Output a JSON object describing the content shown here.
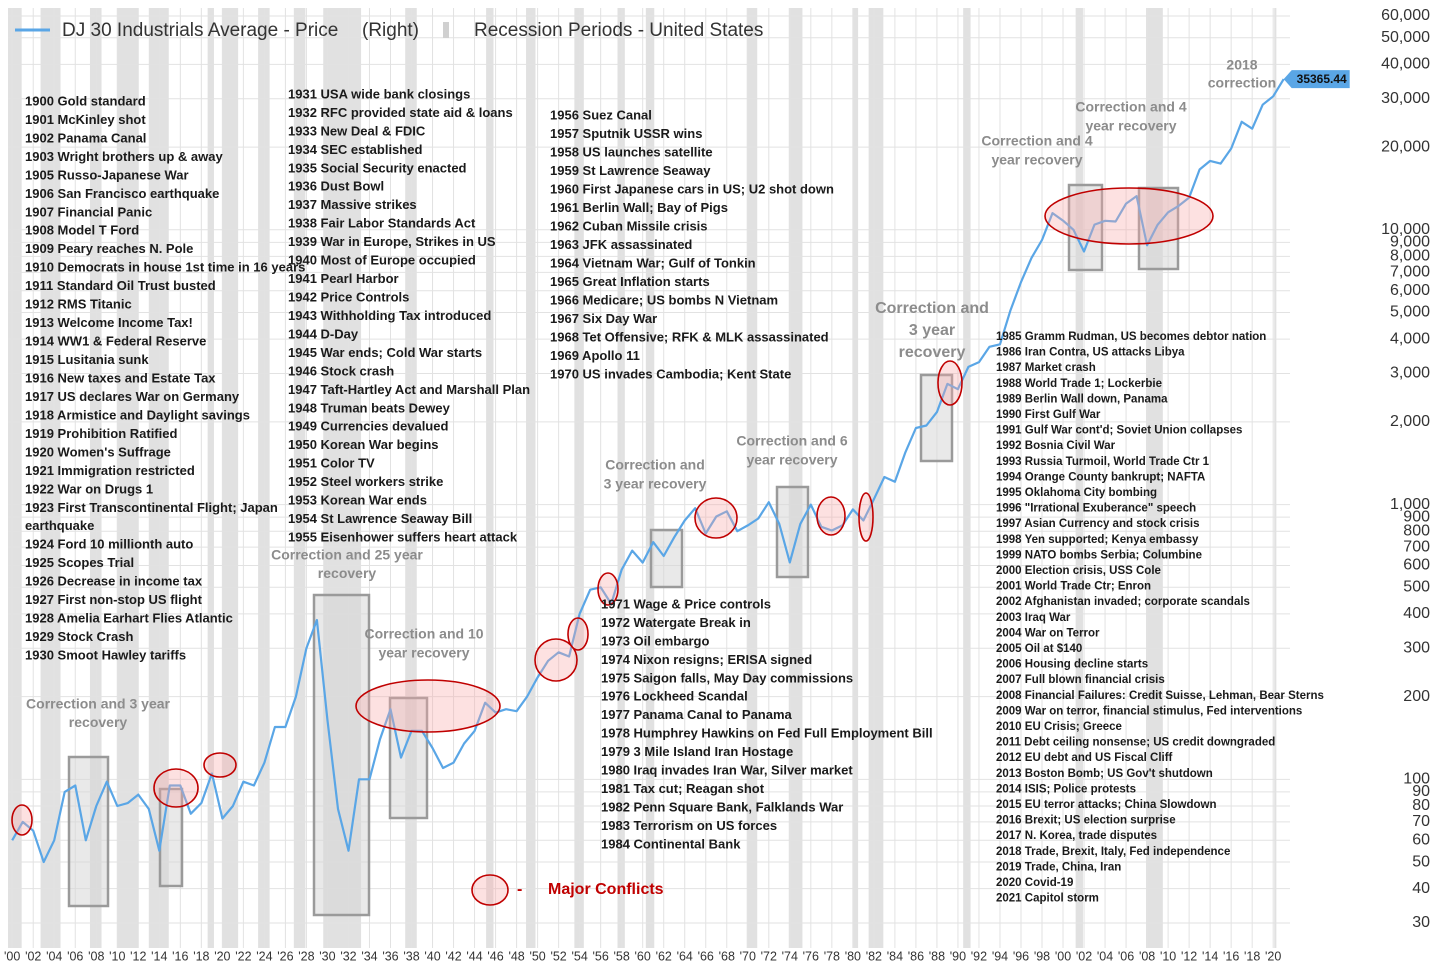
{
  "chart_data": {
    "type": "line",
    "axis_note": "(Right)",
    "recession_name": "Recession Periods - United States",
    "series": [
      {
        "name": "DJ 30 Industrials Average - Price",
        "color": "#5aa6e6",
        "x": [
          1900,
          1901,
          1902,
          1903,
          1904,
          1905,
          1906,
          1907,
          1908,
          1909,
          1910,
          1911,
          1912,
          1913,
          1914,
          1915,
          1916,
          1917,
          1918,
          1919,
          1920,
          1921,
          1922,
          1923,
          1924,
          1925,
          1926,
          1927,
          1928,
          1929,
          1930,
          1931,
          1932,
          1933,
          1934,
          1935,
          1936,
          1937,
          1938,
          1939,
          1940,
          1941,
          1942,
          1943,
          1944,
          1945,
          1946,
          1947,
          1948,
          1949,
          1950,
          1951,
          1952,
          1953,
          1954,
          1955,
          1956,
          1957,
          1958,
          1959,
          1960,
          1961,
          1962,
          1963,
          1964,
          1965,
          1966,
          1967,
          1968,
          1969,
          1970,
          1971,
          1972,
          1973,
          1974,
          1975,
          1976,
          1977,
          1978,
          1979,
          1980,
          1981,
          1982,
          1983,
          1984,
          1985,
          1986,
          1987,
          1988,
          1989,
          1990,
          1991,
          1992,
          1993,
          1994,
          1995,
          1996,
          1997,
          1998,
          1999,
          2000,
          2001,
          2002,
          2003,
          2004,
          2005,
          2006,
          2007,
          2008,
          2009,
          2010,
          2011,
          2012,
          2013,
          2014,
          2015,
          2016,
          2017,
          2018,
          2019,
          2020,
          2021
        ],
        "values": [
          60,
          70,
          65,
          50,
          60,
          90,
          95,
          60,
          80,
          98,
          80,
          82,
          88,
          78,
          55,
          95,
          95,
          75,
          82,
          105,
          72,
          80,
          98,
          95,
          115,
          155,
          155,
          200,
          300,
          380,
          165,
          78,
          55,
          100,
          100,
          140,
          180,
          120,
          150,
          150,
          130,
          110,
          115,
          135,
          150,
          190,
          175,
          180,
          177,
          200,
          235,
          270,
          290,
          280,
          400,
          490,
          500,
          435,
          580,
          680,
          615,
          730,
          650,
          760,
          875,
          970,
          785,
          905,
          945,
          800,
          840,
          890,
          1020,
          850,
          616,
          850,
          1000,
          830,
          805,
          840,
          960,
          875,
          1046,
          1260,
          1210,
          1550,
          1900,
          1940,
          2170,
          2750,
          2630,
          3170,
          3300,
          3750,
          3830,
          5100,
          6450,
          7900,
          9180,
          11500,
          10800,
          10000,
          8340,
          10450,
          10780,
          10720,
          12460,
          13260,
          8780,
          10430,
          11580,
          12220,
          13100,
          16580,
          17820,
          17420,
          19760,
          24720,
          23330,
          28540,
          30600,
          35365.44
        ]
      }
    ],
    "recessions": [
      [
        1899.5,
        1900.9
      ],
      [
        1902.7,
        1904.6
      ],
      [
        1907.4,
        1908.5
      ],
      [
        1910.0,
        1912.0
      ],
      [
        1913.0,
        1914.9
      ],
      [
        1918.6,
        1919.2
      ],
      [
        1920.0,
        1921.5
      ],
      [
        1923.4,
        1924.5
      ],
      [
        1926.8,
        1927.9
      ],
      [
        1929.6,
        1933.2
      ],
      [
        1937.4,
        1938.5
      ],
      [
        1945.1,
        1945.8
      ],
      [
        1948.9,
        1949.8
      ],
      [
        1953.5,
        1954.4
      ],
      [
        1957.6,
        1958.3
      ],
      [
        1960.3,
        1961.1
      ],
      [
        1969.9,
        1970.9
      ],
      [
        1973.9,
        1975.2
      ],
      [
        1980.0,
        1980.5
      ],
      [
        1981.5,
        1982.9
      ],
      [
        1990.5,
        1991.2
      ],
      [
        2001.2,
        2001.9
      ],
      [
        2007.9,
        2009.5
      ],
      [
        2020.1,
        2020.3
      ]
    ],
    "xlim": [
      1899.6,
      2021.6
    ],
    "xticks": [
      {
        "value": 1900,
        "label": "'00"
      },
      {
        "value": 1902,
        "label": "'02"
      },
      {
        "value": 1904,
        "label": "'04"
      },
      {
        "value": 1906,
        "label": "'06"
      },
      {
        "value": 1908,
        "label": "'08"
      },
      {
        "value": 1910,
        "label": "'10"
      },
      {
        "value": 1912,
        "label": "'12"
      },
      {
        "value": 1914,
        "label": "'14"
      },
      {
        "value": 1916,
        "label": "'16"
      },
      {
        "value": 1918,
        "label": "'18"
      },
      {
        "value": 1920,
        "label": "'20"
      },
      {
        "value": 1922,
        "label": "'22"
      },
      {
        "value": 1924,
        "label": "'24"
      },
      {
        "value": 1926,
        "label": "'26"
      },
      {
        "value": 1928,
        "label": "'28"
      },
      {
        "value": 1930,
        "label": "'30"
      },
      {
        "value": 1932,
        "label": "'32"
      },
      {
        "value": 1934,
        "label": "'34"
      },
      {
        "value": 1936,
        "label": "'36"
      },
      {
        "value": 1938,
        "label": "'38"
      },
      {
        "value": 1940,
        "label": "'40"
      },
      {
        "value": 1942,
        "label": "'42"
      },
      {
        "value": 1944,
        "label": "'44"
      },
      {
        "value": 1946,
        "label": "'46"
      },
      {
        "value": 1948,
        "label": "'48"
      },
      {
        "value": 1950,
        "label": "'50"
      },
      {
        "value": 1952,
        "label": "'52"
      },
      {
        "value": 1954,
        "label": "'54"
      },
      {
        "value": 1956,
        "label": "'56"
      },
      {
        "value": 1958,
        "label": "'58"
      },
      {
        "value": 1960,
        "label": "'60"
      },
      {
        "value": 1962,
        "label": "'62"
      },
      {
        "value": 1964,
        "label": "'64"
      },
      {
        "value": 1966,
        "label": "'66"
      },
      {
        "value": 1968,
        "label": "'68"
      },
      {
        "value": 1970,
        "label": "'70"
      },
      {
        "value": 1972,
        "label": "'72"
      },
      {
        "value": 1974,
        "label": "'74"
      },
      {
        "value": 1976,
        "label": "'76"
      },
      {
        "value": 1978,
        "label": "'78"
      },
      {
        "value": 1980,
        "label": "'80"
      },
      {
        "value": 1982,
        "label": "'82"
      },
      {
        "value": 1984,
        "label": "'84"
      },
      {
        "value": 1986,
        "label": "'86"
      },
      {
        "value": 1988,
        "label": "'88"
      },
      {
        "value": 1990,
        "label": "'90"
      },
      {
        "value": 1992,
        "label": "'92"
      },
      {
        "value": 1994,
        "label": "'94"
      },
      {
        "value": 1996,
        "label": "'96"
      },
      {
        "value": 1998,
        "label": "'98"
      },
      {
        "value": 2000,
        "label": "'00"
      },
      {
        "value": 2002,
        "label": "'02"
      },
      {
        "value": 2004,
        "label": "'04"
      },
      {
        "value": 2006,
        "label": "'06"
      },
      {
        "value": 2008,
        "label": "'08"
      },
      {
        "value": 2010,
        "label": "'10"
      },
      {
        "value": 2012,
        "label": "'12"
      },
      {
        "value": 2014,
        "label": "'14"
      },
      {
        "value": 2016,
        "label": "'16"
      },
      {
        "value": 2018,
        "label": "'18"
      },
      {
        "value": 2020,
        "label": "'20"
      }
    ],
    "ylim": [
      30,
      60000
    ],
    "log_y": true,
    "grid": true,
    "yticks": [
      30,
      40,
      50,
      60,
      70,
      80,
      90,
      100,
      200,
      300,
      400,
      500,
      600,
      700,
      800,
      900,
      {
        "value": 1000,
        "label": "1,000"
      },
      {
        "value": 2000,
        "label": "2,000"
      },
      {
        "value": 3000,
        "label": "3,000"
      },
      {
        "value": 4000,
        "label": "4,000"
      },
      {
        "value": 5000,
        "label": "5,000"
      },
      {
        "value": 6000,
        "label": "6,000"
      },
      {
        "value": 7000,
        "label": "7,000"
      },
      {
        "value": 8000,
        "label": "8,000"
      },
      {
        "value": 9000,
        "label": "9,000"
      },
      {
        "value": 10000,
        "label": "10,000"
      },
      {
        "value": 20000,
        "label": "20,000"
      },
      {
        "value": 30000,
        "label": "30,000"
      },
      {
        "value": 40000,
        "label": "40,000"
      },
      {
        "value": 50000,
        "label": "50,000"
      },
      {
        "value": 60000,
        "label": "60,000"
      }
    ],
    "conflict_legend": {
      "dash": "-",
      "label": "Major Conflicts"
    },
    "annotations": [
      [
        "Correction and 3 year",
        "recovery"
      ],
      [
        "Correction and 25 year",
        "recovery"
      ],
      [
        "Correction and 10",
        "year recovery"
      ],
      [
        "Correction and",
        "3 year recovery"
      ],
      [
        "Correction and 6",
        "year recovery"
      ],
      [
        "Correction and",
        "3 year",
        "recovery"
      ],
      [
        "Correction and 4",
        "year recovery"
      ],
      [
        "Correction and 4",
        "year recovery"
      ],
      [
        "2018",
        "correction"
      ]
    ],
    "events": [
      [
        "1900 Gold standard",
        "1901 McKinley shot",
        "1902 Panama Canal",
        "1903 Wright brothers up & away",
        "1905 Russo-Japanese War",
        "1906 San Francisco earthquake",
        "1907 Financial Panic",
        "1908 Model T Ford",
        "1909 Peary reaches N. Pole",
        "1910 Democrats in house 1st time in 16 years",
        "1911 Standard Oil Trust busted",
        "1912 RMS Titanic",
        "1913 Welcome Income Tax!",
        "1914 WW1 & Federal Reserve",
        "1915 Lusitania sunk",
        "1916 New taxes and Estate Tax",
        "1917 US declares War on Germany",
        "1918 Armistice and Daylight savings",
        "1919 Prohibition Ratified",
        "1920 Women's Suffrage",
        "1921 Immigration restricted",
        "1922 War on Drugs 1",
        "1923 First Transcontinental Flight; Japan",
        "earthquake",
        "1924 Ford 10 millionth auto",
        "1925 Scopes Trial",
        "1926 Decrease in income tax",
        "1927 First non-stop US flight",
        "1928 Amelia Earhart Flies Atlantic",
        "1929 Stock Crash",
        "1930 Smoot Hawley tariffs"
      ],
      [
        "1931 USA wide bank closings",
        "1932 RFC provided state aid & loans",
        "1933 New Deal & FDIC",
        "1934 SEC established",
        "1935 Social Security enacted",
        "1936 Dust Bowl",
        "1937 Massive strikes",
        "1938 Fair Labor Standards Act",
        "1939 War in Europe, Strikes in US",
        "1940 Most of Europe occupied",
        "1941 Pearl Harbor",
        "1942 Price Controls",
        "1943 Withholding Tax introduced",
        "1944 D-Day",
        "1945 War ends; Cold War starts",
        "1946 Stock crash",
        "1947 Taft-Hartley Act and Marshall Plan",
        "1948 Truman beats Dewey",
        "1949 Currencies devalued",
        "1950 Korean War begins",
        "1951 Color TV",
        "1952 Steel workers strike",
        "1953 Korean War ends",
        "1954 St Lawrence Seaway Bill",
        "1955 Eisenhower suffers heart attack"
      ],
      [
        "1956 Suez Canal",
        "1957 Sputnik USSR wins",
        "1958 US launches satellite",
        "1959 St Lawrence Seaway",
        "1960 First Japanese cars in US; U2 shot down",
        "1961 Berlin Wall; Bay of Pigs",
        "1962 Cuban Missile crisis",
        "1963 JFK assassinated",
        "1964 Vietnam War; Gulf of Tonkin",
        "1965 Great Inflation starts",
        "1966 Medicare; US bombs N Vietnam",
        "1967 Six Day War",
        "1968 Tet Offensive; RFK & MLK assassinated",
        "1969 Apollo 11",
        "1970 US invades Cambodia; Kent State"
      ],
      [
        "1971 Wage & Price controls",
        "1972 Watergate Break in",
        "1973 Oil embargo",
        "1974 Nixon resigns; ERISA signed",
        "1975 Saigon falls, May Day commissions",
        "1976 Lockheed Scandal",
        "1977 Panama Canal to Panama",
        "1978 Humphrey Hawkins on Fed Full Employment Bill",
        "1979 3 Mile Island Iran Hostage",
        "1980 Iraq invades Iran War, Silver market",
        "1981 Tax cut; Reagan shot",
        "1982 Penn Square Bank, Falklands War",
        "1983 Terrorism on US forces",
        "1984 Continental Bank"
      ],
      [
        "1985 Gramm Rudman, US becomes debtor nation",
        "1986 Iran Contra, US attacks Libya",
        "1987 Market crash",
        "1988 World Trade 1; Lockerbie",
        "1989 Berlin Wall down, Panama",
        "1990 First Gulf War",
        "1991 Gulf War cont'd; Soviet Union collapses",
        "1992 Bosnia Civil War",
        "1993 Russia Turmoil, World Trade Ctr 1",
        "1994 Orange County bankrupt; NAFTA",
        "1995 Oklahoma City bombing",
        "1996 \"Irrational Exuberance\" speech",
        "1997 Asian Currency and stock crisis",
        "1998 Yen supported; Kenya embassy",
        "1999 NATO bombs Serbia; Columbine",
        "2000 Election crisis, USS Cole",
        "2001 World Trade Ctr; Enron",
        "2002 Afghanistan invaded; corporate scandals",
        "2003 Iraq War",
        "2004 War on Terror",
        "2005 Oil at $140",
        "2006 Housing decline starts",
        "2007 Full blown financial crisis",
        "2008 Financial Failures: Credit Suisse, Lehman, Bear Sterns",
        "2009 War on terror, financial stimulus, Fed interventions",
        "2010 EU Crisis; Greece",
        "2011 Debt ceiling nonsense; US credit downgraded",
        "2012 EU debt and US Fiscal Cliff",
        "2013 Boston Bomb; US Gov't shutdown",
        "2014 ISIS; Police protests",
        "2015 EU terror attacks; China Slowdown",
        "2016 Brexit; US election surprise",
        "2017 N. Korea, trade disputes",
        "2018 Trade, Brexit, Italy, Fed independence",
        "2019 Trade, China, Iran",
        "2020 Covid-19",
        "2021 Capitol storm"
      ]
    ]
  }
}
